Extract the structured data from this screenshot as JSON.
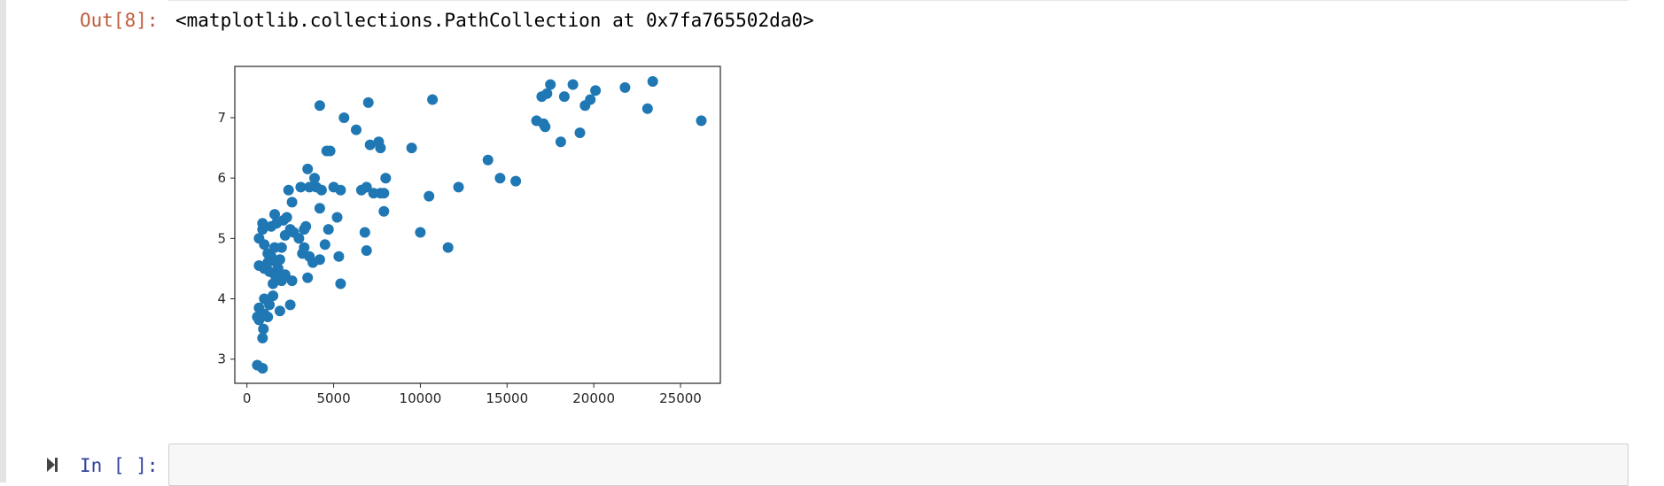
{
  "cell_output": {
    "prompt": "Out[8]:",
    "text": "<matplotlib.collections.PathCollection at 0x7fa765502da0>"
  },
  "cell_input": {
    "prompt": "In [ ]:",
    "value": ""
  },
  "chart_data": {
    "type": "scatter",
    "title": "",
    "xlabel": "",
    "ylabel": "",
    "xlim": [
      -700,
      27300
    ],
    "ylim": [
      2.6,
      7.85
    ],
    "xticks": [
      0,
      5000,
      10000,
      15000,
      20000,
      25000
    ],
    "yticks": [
      3,
      4,
      5,
      6,
      7
    ],
    "grid": false,
    "color": "#1f77b4",
    "points": [
      [
        600,
        2.9
      ],
      [
        900,
        2.85
      ],
      [
        900,
        3.35
      ],
      [
        950,
        3.5
      ],
      [
        700,
        3.65
      ],
      [
        600,
        3.7
      ],
      [
        1200,
        3.7
      ],
      [
        1000,
        3.75
      ],
      [
        700,
        3.85
      ],
      [
        1300,
        3.9
      ],
      [
        1000,
        4.0
      ],
      [
        1500,
        4.05
      ],
      [
        1900,
        3.8
      ],
      [
        2500,
        3.9
      ],
      [
        1500,
        4.25
      ],
      [
        2000,
        4.3
      ],
      [
        2600,
        4.3
      ],
      [
        1600,
        4.4
      ],
      [
        2200,
        4.4
      ],
      [
        1300,
        4.45
      ],
      [
        1800,
        4.5
      ],
      [
        1000,
        4.5
      ],
      [
        700,
        4.55
      ],
      [
        1200,
        4.6
      ],
      [
        1700,
        4.6
      ],
      [
        1900,
        4.65
      ],
      [
        1400,
        4.7
      ],
      [
        1200,
        4.75
      ],
      [
        1600,
        4.85
      ],
      [
        2000,
        4.85
      ],
      [
        1000,
        4.9
      ],
      [
        700,
        5.0
      ],
      [
        1400,
        5.2
      ],
      [
        900,
        5.15
      ],
      [
        900,
        5.25
      ],
      [
        1600,
        5.4
      ],
      [
        1700,
        5.25
      ],
      [
        2100,
        5.3
      ],
      [
        2300,
        5.35
      ],
      [
        2700,
        5.1
      ],
      [
        2200,
        5.05
      ],
      [
        2500,
        5.15
      ],
      [
        3000,
        5.0
      ],
      [
        3300,
        5.15
      ],
      [
        3400,
        5.2
      ],
      [
        3200,
        4.75
      ],
      [
        3600,
        4.7
      ],
      [
        3800,
        4.6
      ],
      [
        3300,
        4.85
      ],
      [
        4200,
        4.65
      ],
      [
        4500,
        4.9
      ],
      [
        4700,
        5.15
      ],
      [
        5200,
        5.35
      ],
      [
        5300,
        4.7
      ],
      [
        5400,
        4.25
      ],
      [
        3500,
        4.35
      ],
      [
        4200,
        5.5
      ],
      [
        2600,
        5.6
      ],
      [
        2400,
        5.8
      ],
      [
        3100,
        5.85
      ],
      [
        3500,
        6.15
      ],
      [
        3600,
        5.85
      ],
      [
        3900,
        6.0
      ],
      [
        4300,
        5.8
      ],
      [
        4600,
        6.45
      ],
      [
        4800,
        6.45
      ],
      [
        5000,
        5.85
      ],
      [
        5400,
        5.8
      ],
      [
        4000,
        5.85
      ],
      [
        6600,
        5.8
      ],
      [
        6900,
        5.85
      ],
      [
        7300,
        5.75
      ],
      [
        7700,
        5.75
      ],
      [
        7900,
        5.75
      ],
      [
        8000,
        6.0
      ],
      [
        7900,
        5.45
      ],
      [
        6800,
        5.1
      ],
      [
        6900,
        4.8
      ],
      [
        6300,
        6.8
      ],
      [
        5600,
        7.0
      ],
      [
        4200,
        7.2
      ],
      [
        7000,
        7.25
      ],
      [
        7100,
        6.55
      ],
      [
        7600,
        6.6
      ],
      [
        7700,
        6.5
      ],
      [
        9500,
        6.5
      ],
      [
        10000,
        5.1
      ],
      [
        10500,
        5.7
      ],
      [
        10700,
        7.3
      ],
      [
        11600,
        4.85
      ],
      [
        12200,
        5.85
      ],
      [
        13900,
        6.3
      ],
      [
        14600,
        6.0
      ],
      [
        15500,
        5.95
      ],
      [
        16700,
        6.95
      ],
      [
        17000,
        7.35
      ],
      [
        17300,
        7.4
      ],
      [
        17500,
        7.55
      ],
      [
        17100,
        6.9
      ],
      [
        17200,
        6.85
      ],
      [
        18100,
        6.6
      ],
      [
        18300,
        7.35
      ],
      [
        18800,
        7.55
      ],
      [
        19200,
        6.75
      ],
      [
        19500,
        7.2
      ],
      [
        19800,
        7.3
      ],
      [
        20100,
        7.45
      ],
      [
        21800,
        7.5
      ],
      [
        23100,
        7.15
      ],
      [
        23400,
        7.6
      ],
      [
        26200,
        6.95
      ]
    ]
  }
}
